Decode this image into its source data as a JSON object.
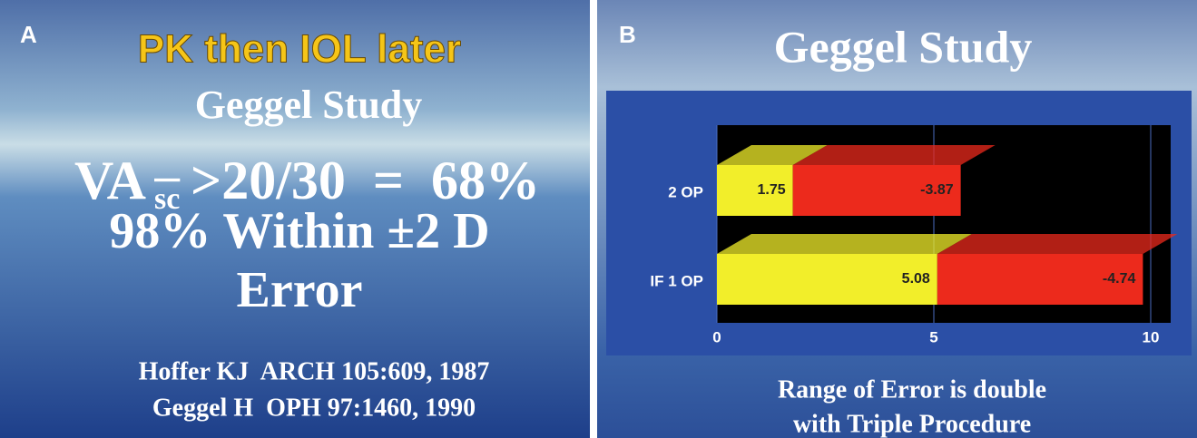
{
  "slide_a": {
    "letter": "A",
    "title": "PK then IOL later",
    "subtitle": "Geggel Study",
    "va": "VA",
    "va_sub": "sc",
    "va_rest": ">20/30  =  68%",
    "lines": [
      "98% Within ±2 D",
      "Error"
    ],
    "refs": [
      "Hoffer KJ  ARCH 105:609, 1987",
      "Geggel H  OPH 97:1460, 1990"
    ]
  },
  "chart_data": {
    "type": "stacked-bar-3d",
    "letter": "B",
    "title": "Geggel Study",
    "caption": [
      "Range of Error is double",
      "with Triple Procedure"
    ],
    "categories": [
      "2 OP",
      "IF 1 OP"
    ],
    "series": [
      {
        "color": "#f2ee2a",
        "values": [
          1.75,
          5.08
        ]
      },
      {
        "color": "#ec2a1c",
        "values": [
          -3.87,
          -4.74
        ]
      }
    ],
    "xlim": [
      0,
      10
    ],
    "xticks": [
      0,
      5,
      10
    ]
  }
}
